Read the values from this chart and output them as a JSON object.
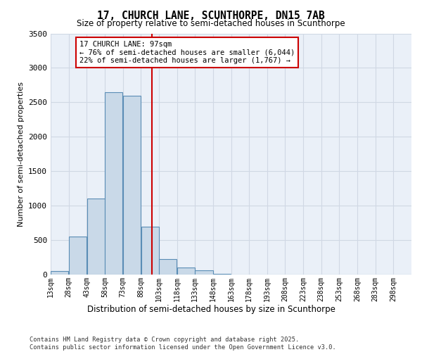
{
  "title_line1": "17, CHURCH LANE, SCUNTHORPE, DN15 7AB",
  "title_line2": "Size of property relative to semi-detached houses in Scunthorpe",
  "xlabel": "Distribution of semi-detached houses by size in Scunthorpe",
  "ylabel": "Number of semi-detached properties",
  "footer_line1": "Contains HM Land Registry data © Crown copyright and database right 2025.",
  "footer_line2": "Contains public sector information licensed under the Open Government Licence v3.0.",
  "annotation_line1": "17 CHURCH LANE: 97sqm",
  "annotation_line2": "← 76% of semi-detached houses are smaller (6,044)",
  "annotation_line3": "22% of semi-detached houses are larger (1,767) →",
  "property_size": 97,
  "bin_edges": [
    13,
    28,
    43,
    58,
    73,
    88,
    103,
    118,
    133,
    148,
    163,
    178,
    193,
    208,
    223,
    238,
    253,
    268,
    283,
    298,
    313
  ],
  "bar_values": [
    50,
    550,
    1100,
    2650,
    2600,
    700,
    225,
    100,
    60,
    10,
    5,
    2,
    0,
    0,
    0,
    0,
    0,
    0,
    0,
    0
  ],
  "bar_color": "#c9d9e8",
  "bar_edge_color": "#5a8db5",
  "vline_color": "#cc0000",
  "vline_x": 97,
  "ylim": [
    0,
    3500
  ],
  "yticks": [
    0,
    500,
    1000,
    1500,
    2000,
    2500,
    3000,
    3500
  ],
  "grid_color": "#d0d8e4",
  "background_color": "#eaf0f8",
  "annotation_box_color": "#ffffff",
  "annotation_box_edge": "#cc0000"
}
